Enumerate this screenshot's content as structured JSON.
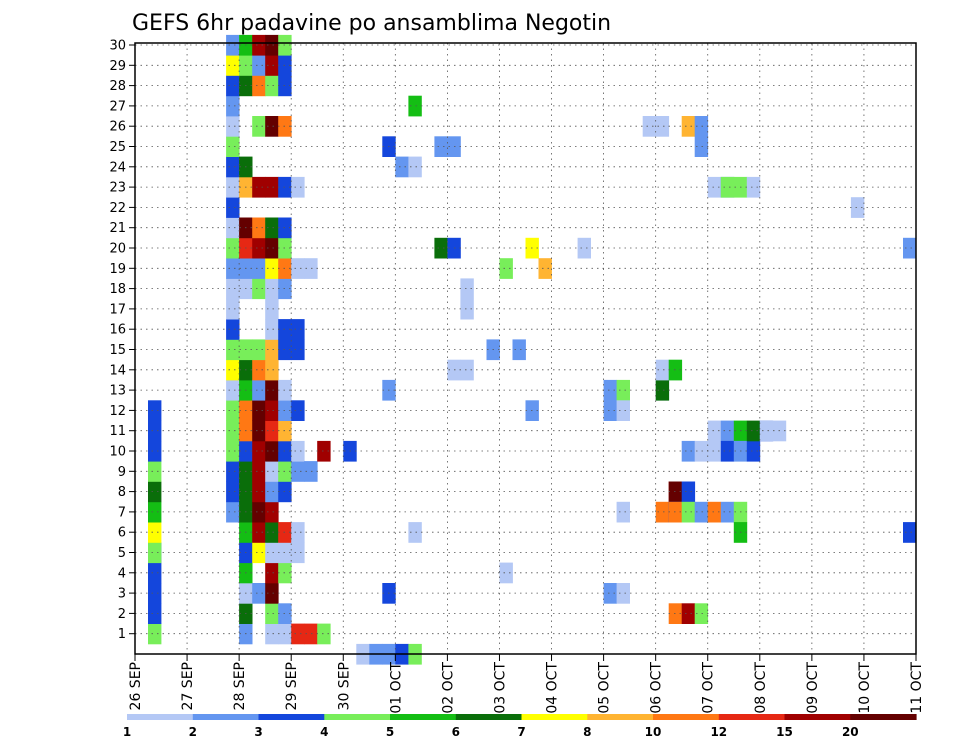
{
  "chart_data": {
    "type": "heatmap",
    "title": "GEFS 6hr padavine po ansamblima Negotin",
    "xlabel": "",
    "ylabel": "",
    "x_time_range": [
      "26 SEP 00",
      "11 OCT 00"
    ],
    "x_step": "6 hours",
    "x_tick_labels": [
      "26 SEP",
      "27 SEP",
      "28 SEP",
      "29 SEP",
      "30 SEP",
      "01 OCT",
      "02 OCT",
      "03 OCT",
      "04 OCT",
      "05 OCT",
      "06 OCT",
      "07 OCT",
      "08 OCT",
      "09 OCT",
      "10 OCT",
      "11 OCT"
    ],
    "y_tick_labels": [
      "1",
      "2",
      "3",
      "4",
      "5",
      "6",
      "7",
      "8",
      "9",
      "10",
      "11",
      "12",
      "13",
      "14",
      "15",
      "16",
      "17",
      "18",
      "19",
      "20",
      "21",
      "22",
      "23",
      "24",
      "25",
      "26",
      "27",
      "28",
      "29",
      "30"
    ],
    "y_range": [
      0,
      30
    ],
    "grid": true,
    "legend_position": "bottom",
    "legend_levels": [
      1,
      2,
      3,
      4,
      5,
      6,
      7,
      8,
      10,
      12,
      15,
      20
    ],
    "legend_colors": [
      "#b4c8f5",
      "#6496f0",
      "#1446dc",
      "#78ee5a",
      "#14be14",
      "#0a6e0a",
      "#ffff00",
      "#ffb432",
      "#ff7814",
      "#e62814",
      "#a00000",
      "#640000"
    ],
    "value_unit_note": "6-hour precipitation (mm)",
    "cells": [
      [
        1,
        0,
        4
      ],
      [
        1,
        4,
        3
      ],
      [
        1,
        1,
        3
      ],
      [
        1,
        2,
        3
      ],
      [
        1,
        3,
        3
      ],
      [
        1,
        4,
        4
      ],
      [
        1,
        5,
        7
      ],
      [
        1,
        6,
        5
      ],
      [
        1,
        7,
        6
      ],
      [
        1,
        8,
        4
      ],
      [
        1,
        9,
        3
      ],
      [
        1,
        10,
        3
      ],
      [
        1,
        11,
        3
      ],
      [
        7,
        6,
        2
      ],
      [
        7,
        7,
        3
      ],
      [
        7,
        8,
        3
      ],
      [
        7,
        9,
        4
      ],
      [
        7,
        10,
        4
      ],
      [
        7,
        11,
        4
      ],
      [
        7,
        12,
        1
      ],
      [
        7,
        13,
        7
      ],
      [
        7,
        14,
        4
      ],
      [
        7,
        15,
        3
      ],
      [
        7,
        16,
        1
      ],
      [
        7,
        17,
        1
      ],
      [
        7,
        18,
        2
      ],
      [
        7,
        19,
        4
      ],
      [
        7,
        20,
        1
      ],
      [
        7,
        21,
        3
      ],
      [
        7,
        22,
        1
      ],
      [
        7,
        23,
        3
      ],
      [
        7,
        24,
        4
      ],
      [
        7,
        25,
        1
      ],
      [
        7,
        26,
        2
      ],
      [
        7,
        27,
        3
      ],
      [
        7,
        28,
        7
      ],
      [
        7,
        29,
        2
      ],
      [
        8,
        0,
        2
      ],
      [
        8,
        1,
        6
      ],
      [
        8,
        2,
        1
      ],
      [
        8,
        3,
        5
      ],
      [
        8,
        4,
        3
      ],
      [
        8,
        5,
        5
      ],
      [
        8,
        6,
        6
      ],
      [
        8,
        7,
        6
      ],
      [
        8,
        8,
        6
      ],
      [
        8,
        9,
        3
      ],
      [
        8,
        10,
        9
      ],
      [
        8,
        11,
        9
      ],
      [
        8,
        12,
        5
      ],
      [
        8,
        13,
        6
      ],
      [
        8,
        14,
        4
      ],
      [
        8,
        17,
        1
      ],
      [
        8,
        18,
        2
      ],
      [
        8,
        19,
        10
      ],
      [
        8,
        20,
        12
      ],
      [
        8,
        22,
        8
      ],
      [
        8,
        23,
        6
      ],
      [
        8,
        27,
        6
      ],
      [
        8,
        28,
        4
      ],
      [
        8,
        29,
        5
      ],
      [
        9,
        2,
        2
      ],
      [
        9,
        4,
        7
      ],
      [
        9,
        5,
        11
      ],
      [
        9,
        6,
        12
      ],
      [
        9,
        7,
        11
      ],
      [
        9,
        8,
        11
      ],
      [
        9,
        9,
        11
      ],
      [
        9,
        10,
        12
      ],
      [
        9,
        11,
        12
      ],
      [
        9,
        12,
        2
      ],
      [
        9,
        13,
        9
      ],
      [
        9,
        14,
        4
      ],
      [
        9,
        17,
        4
      ],
      [
        9,
        18,
        2
      ],
      [
        9,
        19,
        11
      ],
      [
        9,
        20,
        9
      ],
      [
        9,
        22,
        11
      ],
      [
        9,
        25,
        4
      ],
      [
        9,
        27,
        9
      ],
      [
        9,
        28,
        2
      ],
      [
        9,
        29,
        11
      ],
      [
        10,
        0,
        1
      ],
      [
        10,
        1,
        4
      ],
      [
        10,
        2,
        12
      ],
      [
        10,
        3,
        11
      ],
      [
        10,
        4,
        1
      ],
      [
        10,
        5,
        6
      ],
      [
        10,
        6,
        11
      ],
      [
        10,
        7,
        2
      ],
      [
        10,
        8,
        1
      ],
      [
        10,
        9,
        12
      ],
      [
        10,
        10,
        10
      ],
      [
        10,
        11,
        11
      ],
      [
        10,
        12,
        12
      ],
      [
        10,
        13,
        8
      ],
      [
        10,
        14,
        8
      ],
      [
        10,
        15,
        1
      ],
      [
        10,
        16,
        1
      ],
      [
        10,
        17,
        1
      ],
      [
        10,
        18,
        7
      ],
      [
        10,
        19,
        12
      ],
      [
        10,
        20,
        6
      ],
      [
        10,
        22,
        11
      ],
      [
        10,
        25,
        12
      ],
      [
        10,
        27,
        4
      ],
      [
        10,
        28,
        11
      ],
      [
        10,
        29,
        12
      ],
      [
        11,
        0,
        1
      ],
      [
        11,
        1,
        2
      ],
      [
        11,
        3,
        4
      ],
      [
        11,
        4,
        1
      ],
      [
        11,
        5,
        10
      ],
      [
        11,
        7,
        3
      ],
      [
        11,
        8,
        4
      ],
      [
        11,
        9,
        3
      ],
      [
        11,
        10,
        8
      ],
      [
        11,
        11,
        2
      ],
      [
        11,
        12,
        1
      ],
      [
        11,
        14,
        3
      ],
      [
        11,
        15,
        3
      ],
      [
        11,
        17,
        2
      ],
      [
        11,
        18,
        9
      ],
      [
        11,
        19,
        4
      ],
      [
        11,
        20,
        3
      ],
      [
        11,
        22,
        3
      ],
      [
        11,
        25,
        9
      ],
      [
        11,
        27,
        3
      ],
      [
        11,
        28,
        3
      ],
      [
        11,
        29,
        4
      ],
      [
        12,
        0,
        10
      ],
      [
        12,
        4,
        1
      ],
      [
        12,
        5,
        1
      ],
      [
        12,
        8,
        2
      ],
      [
        12,
        9,
        1
      ],
      [
        12,
        11,
        3
      ],
      [
        12,
        14,
        3
      ],
      [
        12,
        15,
        3
      ],
      [
        12,
        18,
        1
      ],
      [
        12,
        22,
        1
      ],
      [
        13,
        0,
        10
      ],
      [
        13,
        8,
        2
      ],
      [
        13,
        18,
        1
      ],
      [
        14,
        0,
        4
      ],
      [
        14,
        9,
        11
      ],
      [
        16,
        9,
        3
      ],
      [
        17,
        -1,
        1
      ],
      [
        18,
        -1,
        2
      ],
      [
        19,
        -1,
        2
      ],
      [
        19,
        2,
        3
      ],
      [
        19,
        12,
        2
      ],
      [
        19,
        24,
        3
      ],
      [
        20,
        -1,
        3
      ],
      [
        20,
        23,
        2
      ],
      [
        21,
        -1,
        4
      ],
      [
        21,
        5,
        1
      ],
      [
        21,
        23,
        1
      ],
      [
        21,
        26,
        5
      ],
      [
        23,
        24,
        2
      ],
      [
        23,
        19,
        6
      ],
      [
        24,
        24,
        2
      ],
      [
        24,
        13,
        1
      ],
      [
        24,
        19,
        3
      ],
      [
        25,
        13,
        1
      ],
      [
        25,
        16,
        1
      ],
      [
        25,
        17,
        1
      ],
      [
        27,
        14,
        2
      ],
      [
        28,
        3,
        1
      ],
      [
        28,
        18,
        4
      ],
      [
        29,
        14,
        2
      ],
      [
        30,
        19,
        7
      ],
      [
        30,
        11,
        2
      ],
      [
        31,
        18,
        8
      ],
      [
        34,
        19,
        1
      ],
      [
        36,
        12,
        2
      ],
      [
        36,
        11,
        2
      ],
      [
        36,
        2,
        2
      ],
      [
        37,
        12,
        4
      ],
      [
        37,
        2,
        1
      ],
      [
        37,
        6,
        1
      ],
      [
        37,
        11,
        1
      ],
      [
        39,
        25,
        1
      ],
      [
        40,
        25,
        1
      ],
      [
        40,
        12,
        1
      ],
      [
        40,
        6,
        9
      ],
      [
        40,
        12,
        6
      ],
      [
        40,
        13,
        1
      ],
      [
        41,
        13,
        5
      ],
      [
        41,
        7,
        10
      ],
      [
        41,
        7,
        12
      ],
      [
        41,
        1,
        9
      ],
      [
        41,
        6,
        3
      ],
      [
        41,
        6,
        9
      ],
      [
        42,
        25,
        8
      ],
      [
        42,
        9,
        2
      ],
      [
        42,
        7,
        3
      ],
      [
        42,
        1,
        11
      ],
      [
        42,
        6,
        4
      ],
      [
        43,
        25,
        2
      ],
      [
        43,
        24,
        2
      ],
      [
        43,
        9,
        1
      ],
      [
        43,
        6,
        2
      ],
      [
        43,
        1,
        4
      ],
      [
        44,
        9,
        1
      ],
      [
        44,
        6,
        9
      ],
      [
        44,
        22,
        1
      ],
      [
        44,
        10,
        1
      ],
      [
        45,
        22,
        2
      ],
      [
        45,
        10,
        2
      ],
      [
        45,
        9,
        3
      ],
      [
        45,
        6,
        2
      ],
      [
        45,
        22,
        4
      ],
      [
        46,
        22,
        4
      ],
      [
        46,
        10,
        5
      ],
      [
        46,
        9,
        2
      ],
      [
        46,
        6,
        4
      ],
      [
        46,
        5,
        5
      ],
      [
        47,
        9,
        3
      ],
      [
        47,
        10,
        6
      ],
      [
        47,
        22,
        1
      ],
      [
        48,
        10,
        3
      ],
      [
        48,
        10,
        1
      ],
      [
        49,
        10,
        1
      ],
      [
        55,
        21,
        1
      ],
      [
        59,
        19,
        2
      ],
      [
        59,
        5,
        3
      ]
    ]
  }
}
